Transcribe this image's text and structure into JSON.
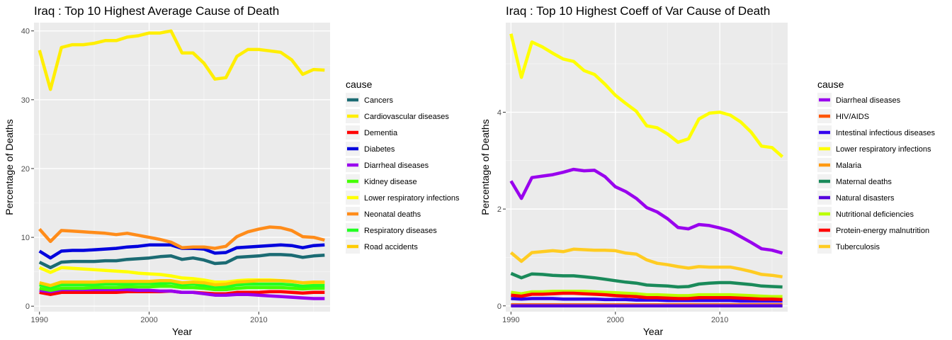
{
  "chart_data": [
    {
      "type": "line",
      "title": "Iraq : Top  10  Highest Average Cause of Death",
      "xlabel": "Year",
      "ylabel": "Percentage of Deaths",
      "xlim": [
        1989.5,
        2016.5
      ],
      "ylim": [
        -0.8,
        41.2
      ],
      "xticks": [
        1990,
        2000,
        2010
      ],
      "yticks": [
        0,
        10,
        20,
        30,
        40
      ],
      "grid": true,
      "legend_title": "cause",
      "legend_position": "right",
      "x": [
        1990,
        1991,
        1992,
        1993,
        1994,
        1995,
        1996,
        1997,
        1998,
        1999,
        2000,
        2001,
        2002,
        2003,
        2004,
        2005,
        2006,
        2007,
        2008,
        2009,
        2010,
        2011,
        2012,
        2013,
        2014,
        2015,
        2016
      ],
      "series": [
        {
          "name": "Cancers",
          "color": "#1b6b73",
          "values": [
            6.4,
            5.6,
            6.4,
            6.5,
            6.5,
            6.5,
            6.6,
            6.6,
            6.8,
            6.9,
            7.0,
            7.2,
            7.3,
            6.8,
            7.0,
            6.7,
            6.2,
            6.3,
            7.1,
            7.2,
            7.3,
            7.5,
            7.5,
            7.4,
            7.1,
            7.3,
            7.4
          ]
        },
        {
          "name": "Cardiovascular diseases",
          "color": "#ffee00",
          "values": [
            37.2,
            31.5,
            37.6,
            38.0,
            38.0,
            38.2,
            38.6,
            38.6,
            39.1,
            39.3,
            39.7,
            39.7,
            40.0,
            36.8,
            36.8,
            35.3,
            33.0,
            33.2,
            36.3,
            37.3,
            37.3,
            37.1,
            36.9,
            35.8,
            33.7,
            34.4,
            34.3
          ]
        },
        {
          "name": "Dementia",
          "color": "#ff0000",
          "values": [
            2.0,
            1.7,
            2.0,
            2.0,
            2.0,
            2.0,
            2.0,
            2.0,
            2.1,
            2.1,
            2.1,
            2.1,
            2.2,
            2.0,
            2.0,
            1.9,
            1.8,
            1.8,
            2.0,
            2.0,
            2.0,
            2.1,
            2.1,
            2.0,
            1.9,
            2.0,
            2.0
          ]
        },
        {
          "name": "Diabetes",
          "color": "#0000dd",
          "values": [
            8.0,
            7.0,
            8.0,
            8.1,
            8.1,
            8.2,
            8.3,
            8.4,
            8.6,
            8.7,
            8.9,
            8.9,
            8.9,
            8.4,
            8.4,
            8.3,
            7.7,
            7.8,
            8.5,
            8.6,
            8.7,
            8.8,
            8.9,
            8.8,
            8.5,
            8.8,
            8.9
          ]
        },
        {
          "name": "Diarrheal diseases",
          "color": "#9900ee",
          "values": [
            2.3,
            2.1,
            2.4,
            2.4,
            2.4,
            2.4,
            2.4,
            2.4,
            2.4,
            2.3,
            2.3,
            2.2,
            2.2,
            2.0,
            2.0,
            1.8,
            1.6,
            1.6,
            1.7,
            1.7,
            1.6,
            1.5,
            1.4,
            1.3,
            1.2,
            1.1,
            1.1
          ]
        },
        {
          "name": "Kidney disease",
          "color": "#44ff00",
          "values": [
            2.6,
            2.3,
            2.6,
            2.6,
            2.6,
            2.7,
            2.7,
            2.7,
            2.8,
            2.8,
            2.8,
            2.9,
            2.9,
            2.7,
            2.7,
            2.6,
            2.4,
            2.4,
            2.6,
            2.7,
            2.7,
            2.7,
            2.7,
            2.6,
            2.5,
            2.6,
            2.6
          ]
        },
        {
          "name": "Lower respiratory infections",
          "color": "#ffff00",
          "values": [
            5.6,
            4.9,
            5.6,
            5.5,
            5.4,
            5.3,
            5.2,
            5.1,
            5.0,
            4.8,
            4.7,
            4.6,
            4.4,
            4.1,
            4.0,
            3.8,
            3.5,
            3.5,
            3.7,
            3.8,
            3.8,
            3.8,
            3.7,
            3.6,
            3.4,
            3.4,
            3.4
          ]
        },
        {
          "name": "Neonatal deaths",
          "color": "#ff8c1a",
          "values": [
            11.2,
            9.4,
            11.0,
            10.9,
            10.8,
            10.7,
            10.6,
            10.4,
            10.6,
            10.3,
            10.0,
            9.7,
            9.3,
            8.5,
            8.6,
            8.6,
            8.4,
            8.7,
            10.1,
            10.8,
            11.2,
            11.5,
            11.4,
            11.0,
            10.1,
            10.0,
            9.6
          ]
        },
        {
          "name": "Respiratory diseases",
          "color": "#22ff22",
          "values": [
            3.1,
            2.7,
            3.1,
            3.1,
            3.1,
            3.1,
            3.2,
            3.2,
            3.2,
            3.3,
            3.3,
            3.3,
            3.4,
            3.1,
            3.2,
            3.0,
            2.8,
            2.8,
            3.1,
            3.2,
            3.2,
            3.2,
            3.2,
            3.1,
            2.9,
            3.0,
            3.0
          ]
        },
        {
          "name": "Road accidents",
          "color": "#ffcc00",
          "values": [
            3.4,
            3.0,
            3.5,
            3.5,
            3.5,
            3.5,
            3.6,
            3.6,
            3.6,
            3.6,
            3.6,
            3.7,
            3.7,
            3.4,
            3.5,
            3.4,
            3.1,
            3.2,
            3.5,
            3.6,
            3.7,
            3.7,
            3.7,
            3.6,
            3.4,
            3.5,
            3.5
          ]
        }
      ]
    },
    {
      "type": "line",
      "title": "Iraq : Top  10  Highest Coeff of Var Cause of Death",
      "xlabel": "Year",
      "ylabel": "Percentage of Deaths",
      "xlim": [
        1989.5,
        2016.5
      ],
      "ylim": [
        -0.12,
        5.85
      ],
      "xticks": [
        1990,
        2000,
        2010
      ],
      "yticks": [
        0,
        2,
        4
      ],
      "grid": true,
      "legend_title": "cause",
      "legend_position": "right",
      "x": [
        1990,
        1991,
        1992,
        1993,
        1994,
        1995,
        1996,
        1997,
        1998,
        1999,
        2000,
        2001,
        2002,
        2003,
        2004,
        2005,
        2006,
        2007,
        2008,
        2009,
        2010,
        2011,
        2012,
        2013,
        2014,
        2015,
        2016
      ],
      "series": [
        {
          "name": "Diarrheal diseases",
          "color": "#9900ee",
          "values": [
            2.58,
            2.22,
            2.65,
            2.68,
            2.71,
            2.76,
            2.82,
            2.79,
            2.8,
            2.67,
            2.46,
            2.36,
            2.22,
            2.03,
            1.94,
            1.8,
            1.62,
            1.59,
            1.68,
            1.66,
            1.61,
            1.55,
            1.43,
            1.31,
            1.18,
            1.15,
            1.09
          ]
        },
        {
          "name": "HIV/AIDS",
          "color": "#ff5500",
          "values": [
            0.02,
            0.02,
            0.02,
            0.02,
            0.02,
            0.02,
            0.02,
            0.02,
            0.02,
            0.02,
            0.02,
            0.02,
            0.02,
            0.02,
            0.02,
            0.02,
            0.02,
            0.02,
            0.02,
            0.02,
            0.02,
            0.02,
            0.02,
            0.02,
            0.02,
            0.02,
            0.02
          ]
        },
        {
          "name": "Intestinal infectious diseases",
          "color": "#3300ee",
          "values": [
            0.15,
            0.14,
            0.15,
            0.15,
            0.15,
            0.14,
            0.14,
            0.14,
            0.14,
            0.13,
            0.13,
            0.13,
            0.12,
            0.12,
            0.12,
            0.11,
            0.11,
            0.11,
            0.11,
            0.11,
            0.11,
            0.11,
            0.1,
            0.1,
            0.1,
            0.1,
            0.1
          ]
        },
        {
          "name": "Lower respiratory infections",
          "color": "#ffff00",
          "values": [
            5.62,
            4.72,
            5.45,
            5.35,
            5.22,
            5.1,
            5.05,
            4.86,
            4.78,
            4.58,
            4.35,
            4.18,
            4.02,
            3.72,
            3.68,
            3.55,
            3.38,
            3.45,
            3.86,
            3.98,
            4.0,
            3.94,
            3.8,
            3.59,
            3.3,
            3.27,
            3.08
          ]
        },
        {
          "name": "Malaria",
          "color": "#ff9911",
          "values": [
            0.01,
            0.01,
            0.01,
            0.01,
            0.01,
            0.01,
            0.01,
            0.01,
            0.01,
            0.01,
            0.01,
            0.01,
            0.01,
            0.01,
            0.01,
            0.01,
            0.01,
            0.01,
            0.01,
            0.01,
            0.01,
            0.01,
            0.01,
            0.01,
            0.01,
            0.01,
            0.01
          ]
        },
        {
          "name": "Maternal deaths",
          "color": "#1a8a5a",
          "values": [
            0.67,
            0.58,
            0.66,
            0.65,
            0.63,
            0.62,
            0.62,
            0.6,
            0.58,
            0.55,
            0.52,
            0.49,
            0.47,
            0.43,
            0.42,
            0.41,
            0.39,
            0.4,
            0.45,
            0.47,
            0.48,
            0.48,
            0.46,
            0.44,
            0.41,
            0.4,
            0.39
          ]
        },
        {
          "name": "Natural disasters",
          "color": "#5500dd",
          "values": [
            0.0,
            0.0,
            0.0,
            0.0,
            0.0,
            0.0,
            0.0,
            0.0,
            0.0,
            0.0,
            0.0,
            0.0,
            0.0,
            0.0,
            0.0,
            0.0,
            0.0,
            0.0,
            0.0,
            0.0,
            0.0,
            0.0,
            0.0,
            0.0,
            0.0,
            0.0,
            0.0
          ]
        },
        {
          "name": "Nutritional deficiencies",
          "color": "#bbff00",
          "values": [
            0.28,
            0.25,
            0.29,
            0.29,
            0.3,
            0.3,
            0.3,
            0.3,
            0.29,
            0.28,
            0.27,
            0.26,
            0.25,
            0.23,
            0.23,
            0.22,
            0.21,
            0.21,
            0.23,
            0.23,
            0.23,
            0.23,
            0.22,
            0.21,
            0.2,
            0.19,
            0.19
          ]
        },
        {
          "name": "Protein-energy malnutrition",
          "color": "#ff0000",
          "values": [
            0.22,
            0.2,
            0.24,
            0.24,
            0.25,
            0.26,
            0.26,
            0.25,
            0.24,
            0.23,
            0.21,
            0.2,
            0.19,
            0.17,
            0.17,
            0.16,
            0.15,
            0.15,
            0.17,
            0.17,
            0.17,
            0.17,
            0.16,
            0.15,
            0.14,
            0.14,
            0.13
          ]
        },
        {
          "name": "Tuberculosis",
          "color": "#ffcc22",
          "values": [
            1.1,
            0.92,
            1.1,
            1.12,
            1.14,
            1.12,
            1.17,
            1.16,
            1.15,
            1.15,
            1.14,
            1.09,
            1.07,
            0.95,
            0.88,
            0.85,
            0.81,
            0.78,
            0.81,
            0.8,
            0.8,
            0.8,
            0.76,
            0.71,
            0.65,
            0.63,
            0.6
          ]
        }
      ]
    }
  ]
}
